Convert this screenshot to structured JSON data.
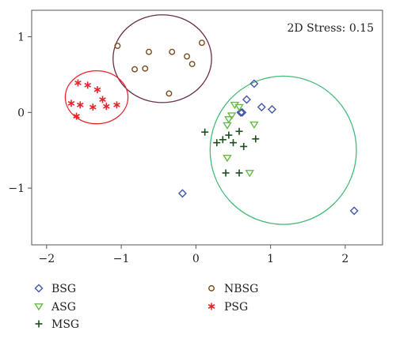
{
  "chart_data": {
    "type": "scatter",
    "annotation": "2D Stress: 0.15",
    "xlim": [
      -2.2,
      2.5
    ],
    "ylim": [
      -1.75,
      1.35
    ],
    "x_ticks": [
      -2,
      -1,
      0,
      1,
      2
    ],
    "y_ticks": [
      -1,
      0,
      1
    ],
    "x_tick_labels": [
      "−2",
      "−1",
      "0",
      "1",
      "2"
    ],
    "y_tick_labels": [
      "−1",
      "0",
      "1"
    ],
    "grid": false,
    "legend_position": "bottom",
    "series": [
      {
        "name": "BSG",
        "marker": "diamond",
        "color": "#4455aa",
        "points": [
          [
            0.78,
            0.38
          ],
          [
            0.68,
            0.17
          ],
          [
            0.6,
            0.0
          ],
          [
            0.62,
            0.0
          ],
          [
            0.88,
            0.07
          ],
          [
            1.02,
            0.04
          ],
          [
            -0.18,
            -1.07
          ],
          [
            2.12,
            -1.3
          ]
        ]
      },
      {
        "name": "NBSG",
        "marker": "circle",
        "color": "#7a4a1a",
        "points": [
          [
            -1.05,
            0.88
          ],
          [
            -0.82,
            0.57
          ],
          [
            -0.68,
            0.58
          ],
          [
            -0.63,
            0.8
          ],
          [
            -0.32,
            0.8
          ],
          [
            -0.12,
            0.74
          ],
          [
            -0.05,
            0.64
          ],
          [
            0.08,
            0.92
          ],
          [
            -0.36,
            0.25
          ]
        ]
      },
      {
        "name": "ASG",
        "marker": "triangle-down",
        "color": "#66bb44",
        "points": [
          [
            0.52,
            0.1
          ],
          [
            0.48,
            -0.04
          ],
          [
            0.44,
            -0.09
          ],
          [
            0.42,
            -0.17
          ],
          [
            0.58,
            0.07
          ],
          [
            0.78,
            -0.16
          ],
          [
            0.42,
            -0.6
          ],
          [
            0.72,
            -0.8
          ]
        ]
      },
      {
        "name": "PSG",
        "marker": "asterisk",
        "color": "#e8222a",
        "points": [
          [
            -1.58,
            0.39
          ],
          [
            -1.45,
            0.36
          ],
          [
            -1.32,
            0.3
          ],
          [
            -1.67,
            0.12
          ],
          [
            -1.55,
            0.1
          ],
          [
            -1.38,
            0.07
          ],
          [
            -1.25,
            0.17
          ],
          [
            -1.2,
            0.08
          ],
          [
            -1.06,
            0.1
          ],
          [
            -1.6,
            -0.05
          ]
        ]
      },
      {
        "name": "MSG",
        "marker": "plus",
        "color": "#1d4d1d",
        "points": [
          [
            0.12,
            -0.26
          ],
          [
            0.28,
            -0.4
          ],
          [
            0.36,
            -0.36
          ],
          [
            0.44,
            -0.3
          ],
          [
            0.58,
            -0.25
          ],
          [
            0.64,
            -0.45
          ],
          [
            0.8,
            -0.35
          ],
          [
            0.5,
            -0.4
          ],
          [
            0.4,
            -0.8
          ],
          [
            0.58,
            -0.8
          ]
        ]
      }
    ],
    "ellipses": [
      {
        "group": "NBSG",
        "color": "#6a2f4a",
        "cx": -0.45,
        "cy": 0.71,
        "rx": 0.66,
        "ry": 0.58
      },
      {
        "group": "PSG",
        "color": "#e8222a",
        "cx": -1.33,
        "cy": 0.2,
        "rx": 0.42,
        "ry": 0.35
      },
      {
        "group": "BSG/ASG/MSG",
        "color": "#44bb77",
        "cx": 1.17,
        "cy": -0.5,
        "rx": 0.98,
        "ry": 0.98
      }
    ]
  },
  "legend": [
    {
      "label": "BSG",
      "marker": "diamond",
      "color": "#4455aa"
    },
    {
      "label": "NBSG",
      "marker": "circle",
      "color": "#7a4a1a"
    },
    {
      "label": "ASG",
      "marker": "triangle-down",
      "color": "#66bb44"
    },
    {
      "label": "PSG",
      "marker": "asterisk",
      "color": "#e8222a"
    },
    {
      "label": "MSG",
      "marker": "plus",
      "color": "#1d4d1d"
    }
  ]
}
